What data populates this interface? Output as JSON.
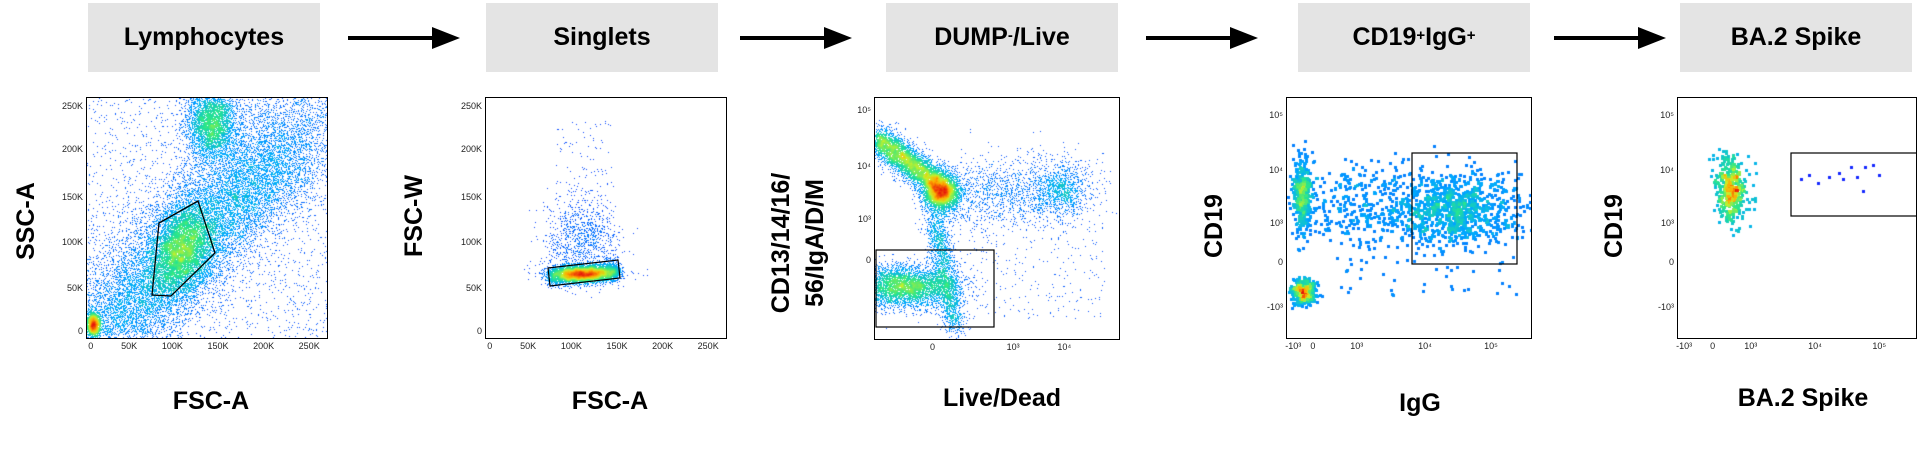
{
  "panels": [
    {
      "id": "p1",
      "title": "Lymphocytes",
      "xlabel": "FSC-A",
      "ylabel": "SSC-A",
      "xticks": [
        "0",
        "50K",
        "100K",
        "150K",
        "200K",
        "250K"
      ],
      "yticks": [
        "250K",
        "200K",
        "150K",
        "100K",
        "50K",
        "0"
      ]
    },
    {
      "id": "p2",
      "title": "Singlets",
      "title_sup": "",
      "xlabel": "FSC-A",
      "ylabel": "FSC-W",
      "xticks": [
        "0",
        "50K",
        "100K",
        "150K",
        "200K",
        "250K"
      ],
      "yticks": [
        "250K",
        "200K",
        "150K",
        "100K",
        "50K",
        "0"
      ]
    },
    {
      "id": "p3",
      "title_pre": "DUMP",
      "title_sup": "-",
      "title_post": "/Live",
      "xlabel": "Live/Dead",
      "ylabel_line1": "CD13/14/16/",
      "ylabel_line2": "56/IgA/D/M",
      "xticks": [
        "0",
        "10³",
        "10⁴"
      ],
      "yticks": [
        "10⁵",
        "10⁴",
        "10³",
        "0"
      ]
    },
    {
      "id": "p4",
      "title_a": "CD19",
      "title_sup1": "+",
      "title_b": "IgG",
      "title_sup2": "+",
      "xlabel": "IgG",
      "ylabel": "CD19",
      "xticks": [
        "-10³",
        "0",
        "10³",
        "10⁴",
        "10⁵"
      ],
      "yticks": [
        "10⁵",
        "10⁴",
        "10³",
        "0",
        "-10³"
      ]
    },
    {
      "id": "p5",
      "title": "BA.2 Spike",
      "xlabel": "BA.2 Spike",
      "ylabel": "CD19",
      "xticks": [
        "-10³",
        "0",
        "10³",
        "10⁴",
        "10⁵"
      ],
      "yticks": [
        "10⁵",
        "10⁴",
        "10³",
        "0",
        "-10³"
      ]
    }
  ]
}
